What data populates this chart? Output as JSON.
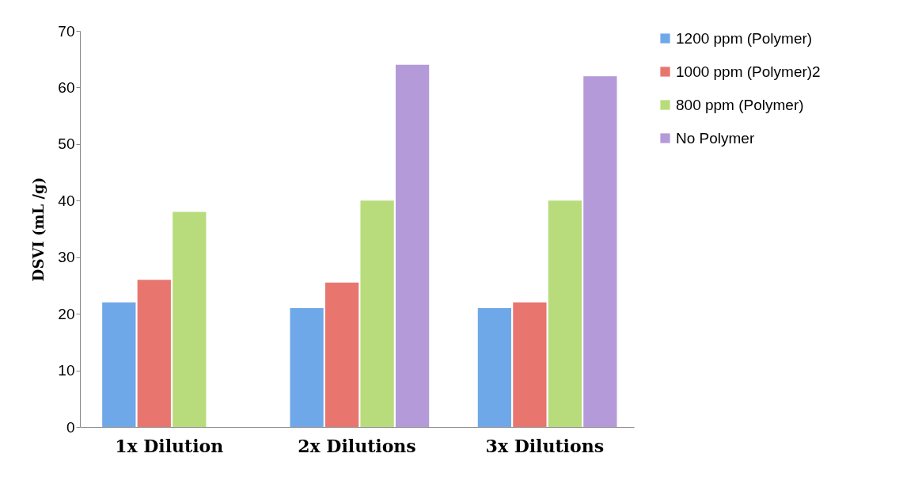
{
  "chart_data": {
    "type": "bar",
    "ylabel": "DSVI (mL /g)",
    "categories": [
      "1x Dilution",
      "2x Dilutions",
      "3x Dilutions"
    ],
    "series": [
      {
        "name": "1200 ppm (Polymer)",
        "color": "#6fa8e8",
        "values": [
          22,
          21,
          21
        ]
      },
      {
        "name": "1000 ppm (Polymer)2",
        "color": "#e8766f",
        "values": [
          26,
          25.5,
          22
        ]
      },
      {
        "name": "800 ppm (Polymer)",
        "color": "#b8dc7c",
        "values": [
          38,
          40,
          40
        ]
      },
      {
        "name": "No Polymer",
        "color": "#b49ad8",
        "values": [
          null,
          64,
          62
        ]
      }
    ],
    "ylim": [
      0,
      70
    ],
    "yticks": [
      0,
      10,
      20,
      30,
      40,
      50,
      60,
      70
    ],
    "grid": false,
    "legend": "right"
  }
}
